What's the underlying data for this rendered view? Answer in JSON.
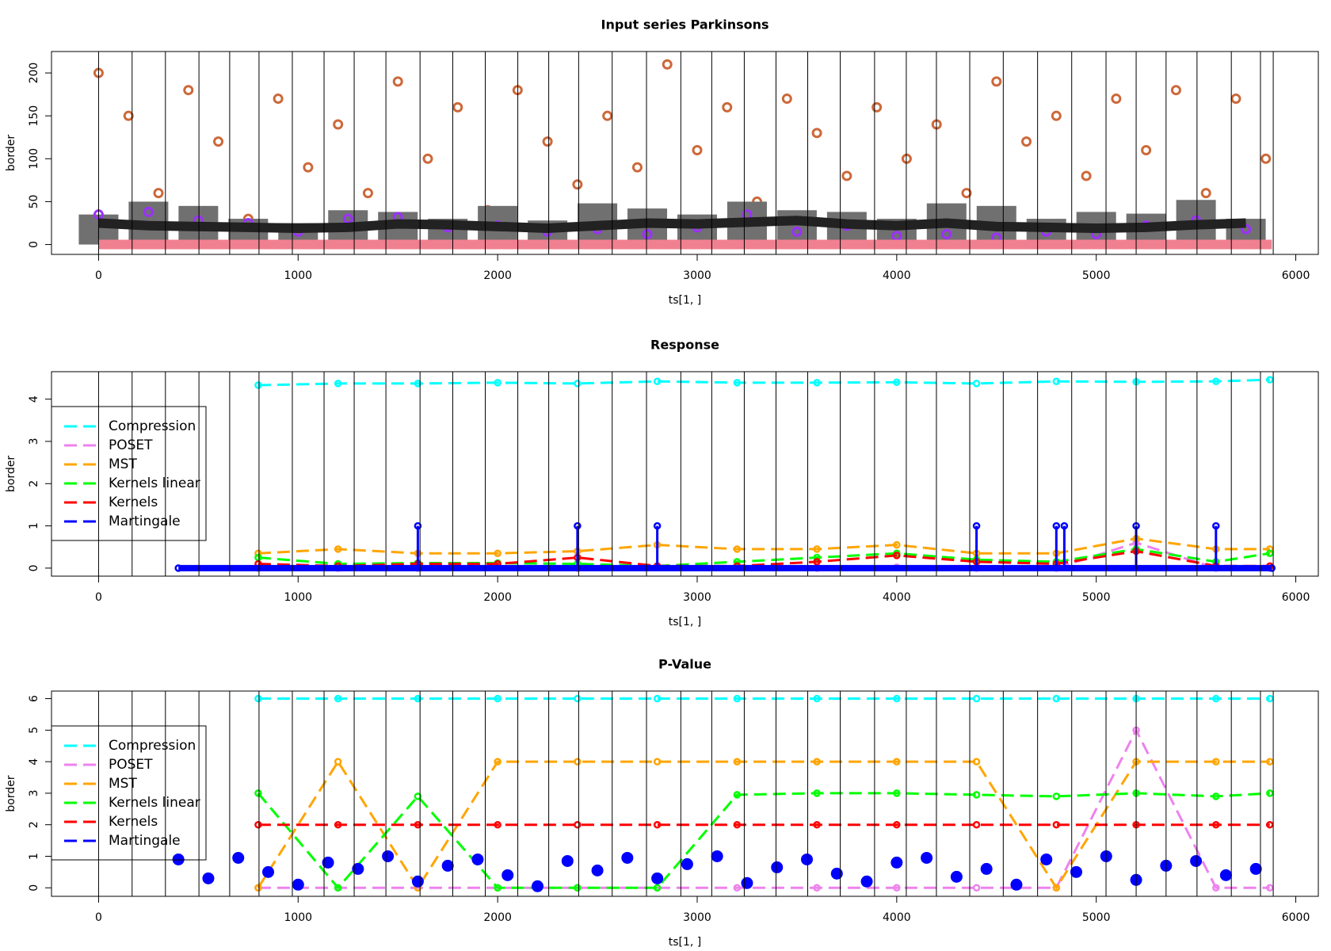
{
  "chart_data": [
    {
      "type": "scatter",
      "title": "Input series Parkinsons",
      "xlabel": "ts[1, ]",
      "ylabel": "border",
      "xlim": [
        -236,
        6113
      ],
      "ylim": [
        -11.5,
        225
      ],
      "xticks": [
        0,
        1000,
        2000,
        3000,
        4000,
        5000,
        6000
      ],
      "yticks": [
        0,
        50,
        100,
        150,
        200
      ],
      "changepoints": [
        0,
        168,
        335,
        503,
        657,
        804,
        971,
        1130,
        1281,
        1440,
        1611,
        1775,
        1938,
        2101,
        2256,
        2406,
        2574,
        2746,
        2918,
        3073,
        3236,
        3395,
        3554,
        3717,
        3889,
        4048,
        4199,
        4366,
        4534,
        4706,
        4877,
        5049,
        5200,
        5350,
        5505,
        5677,
        5823,
        5887
      ],
      "series": [
        {
          "color": "#cd6839",
          "style": "points",
          "x": [
            0,
            150,
            300,
            450,
            600,
            750,
            900,
            1050,
            1200,
            1350,
            1500,
            1650,
            1800,
            1950,
            2100,
            2250,
            2400,
            2550,
            2700,
            2850,
            3000,
            3150,
            3300,
            3450,
            3600,
            3750,
            3900,
            4050,
            4200,
            4350,
            4500,
            4650,
            4800,
            4950,
            5100,
            5250,
            5400,
            5550,
            5700,
            5850
          ],
          "values": [
            200,
            150,
            60,
            180,
            120,
            30,
            170,
            90,
            140,
            60,
            190,
            100,
            160,
            40,
            180,
            120,
            70,
            150,
            90,
            210,
            110,
            160,
            50,
            170,
            130,
            80,
            160,
            100,
            140,
            60,
            190,
            120,
            150,
            80,
            170,
            110,
            180,
            60,
            170,
            100
          ]
        },
        {
          "color": "#707070",
          "style": "blocks",
          "x": [
            0,
            250,
            500,
            750,
            1000,
            1250,
            1500,
            1750,
            2000,
            2250,
            2500,
            2750,
            3000,
            3250,
            3500,
            3750,
            4000,
            4250,
            4500,
            4750,
            5000,
            5250,
            5500,
            5750
          ],
          "values": [
            35,
            50,
            45,
            30,
            25,
            40,
            38,
            30,
            45,
            28,
            48,
            42,
            35,
            50,
            40,
            38,
            30,
            48,
            45,
            30,
            38,
            36,
            52,
            30
          ]
        },
        {
          "color": "#9b30ff",
          "style": "points",
          "x": [
            0,
            250,
            500,
            750,
            1000,
            1250,
            1500,
            1750,
            2000,
            2250,
            2500,
            2750,
            3000,
            3250,
            3500,
            3750,
            4000,
            4250,
            4500,
            4750,
            5000,
            5250,
            5500,
            5750
          ],
          "values": [
            35,
            38,
            28,
            25,
            15,
            30,
            32,
            20,
            22,
            15,
            18,
            12,
            20,
            35,
            15,
            22,
            10,
            12,
            8,
            15,
            12,
            22,
            28,
            18
          ]
        },
        {
          "color": "#222222",
          "style": "thick",
          "x": [
            0,
            250,
            500,
            750,
            1000,
            1250,
            1500,
            1750,
            2000,
            2250,
            2500,
            2750,
            3000,
            3250,
            3500,
            3750,
            4000,
            4250,
            4500,
            4750,
            5000,
            5250,
            5500,
            5750
          ],
          "values": [
            25,
            22,
            21,
            20,
            19,
            20,
            24,
            23,
            21,
            19,
            22,
            25,
            24,
            26,
            28,
            24,
            22,
            25,
            21,
            20,
            19,
            20,
            23,
            25
          ]
        },
        {
          "color": "#f08090",
          "style": "thick",
          "x": [
            0,
            5880
          ],
          "values": [
            0,
            0
          ]
        }
      ]
    },
    {
      "type": "line",
      "title": "Response",
      "xlabel": "ts[1, ]",
      "ylabel": "border",
      "legend": "topleft",
      "xlim": [
        -236,
        6113
      ],
      "ylim": [
        -0.19,
        4.65
      ],
      "xticks": [
        0,
        1000,
        2000,
        3000,
        4000,
        5000,
        6000
      ],
      "yticks": [
        0,
        1,
        2,
        3,
        4
      ],
      "changepoints": [
        0,
        168,
        335,
        503,
        657,
        804,
        971,
        1130,
        1281,
        1440,
        1611,
        1775,
        1938,
        2101,
        2256,
        2406,
        2574,
        2746,
        2918,
        3073,
        3236,
        3395,
        3554,
        3717,
        3889,
        4048,
        4199,
        4366,
        4534,
        4706,
        4877,
        5049,
        5200,
        5350,
        5505,
        5677,
        5823,
        5887
      ],
      "x": [
        800,
        1200,
        1600,
        2000,
        2400,
        2800,
        3200,
        3600,
        4000,
        4400,
        4800,
        5200,
        5600,
        5870
      ],
      "series": [
        {
          "name": "Compression",
          "color": "#00ffff",
          "values": [
            4.33,
            4.37,
            4.37,
            4.39,
            4.37,
            4.42,
            4.39,
            4.39,
            4.4,
            4.37,
            4.42,
            4.41,
            4.42,
            4.46
          ]
        },
        {
          "name": "POSET",
          "color": "#ee82ee",
          "values": [
            0,
            0,
            0,
            0.02,
            0,
            0.02,
            0.02,
            0,
            0.02,
            0,
            0,
            0.6,
            0,
            0
          ]
        },
        {
          "name": "MST",
          "color": "#ffa500",
          "values": [
            0.35,
            0.45,
            0.35,
            0.35,
            0.4,
            0.55,
            0.45,
            0.45,
            0.55,
            0.35,
            0.35,
            0.7,
            0.45,
            0.45
          ]
        },
        {
          "name": "Kernels linear",
          "color": "#00ff00",
          "values": [
            0.25,
            0.1,
            0.12,
            0.12,
            0.1,
            0.05,
            0.15,
            0.25,
            0.35,
            0.2,
            0.15,
            0.45,
            0.15,
            0.35
          ]
        },
        {
          "name": "Kernels",
          "color": "#ff0000",
          "values": [
            0.1,
            0.05,
            0.1,
            0.1,
            0.25,
            0.05,
            0.05,
            0.15,
            0.3,
            0.15,
            0.1,
            0.4,
            0.05,
            0.05
          ]
        },
        {
          "name": "Martingale",
          "color": "#0000ff",
          "style": "stem",
          "x": [
            400,
            1600,
            2400,
            2800,
            4400,
            4800,
            4840,
            5200,
            5600,
            5880
          ],
          "values": [
            0,
            1,
            1,
            1,
            1,
            1,
            1,
            1,
            1,
            0
          ]
        }
      ]
    },
    {
      "type": "line",
      "title": "P-Value",
      "xlabel": "ts[1, ]",
      "ylabel": "border",
      "legend": "topleft",
      "xlim": [
        -236,
        6113
      ],
      "ylim": [
        -0.27,
        6.24
      ],
      "xticks": [
        0,
        1000,
        2000,
        3000,
        4000,
        5000,
        6000
      ],
      "yticks": [
        0,
        1,
        2,
        3,
        4,
        5,
        6
      ],
      "changepoints": [
        0,
        168,
        335,
        503,
        657,
        804,
        971,
        1130,
        1281,
        1440,
        1611,
        1775,
        1938,
        2101,
        2256,
        2406,
        2574,
        2746,
        2918,
        3073,
        3236,
        3395,
        3554,
        3717,
        3889,
        4048,
        4199,
        4366,
        4534,
        4706,
        4877,
        5049,
        5200,
        5350,
        5505,
        5677,
        5823,
        5887
      ],
      "x": [
        800,
        1200,
        1600,
        2000,
        2400,
        2800,
        3200,
        3600,
        4000,
        4400,
        4800,
        5200,
        5600,
        5870
      ],
      "series": [
        {
          "name": "Compression",
          "color": "#00ffff",
          "values": [
            6,
            6,
            6,
            6,
            6,
            6,
            6,
            6,
            6,
            6,
            6,
            6,
            6,
            6
          ]
        },
        {
          "name": "POSET",
          "color": "#ee82ee",
          "values": [
            0,
            0,
            0,
            0,
            0,
            0,
            0,
            0,
            0,
            0,
            0,
            5,
            0,
            0
          ]
        },
        {
          "name": "MST",
          "color": "#ffa500",
          "values": [
            0,
            4,
            0,
            4,
            4,
            4,
            4,
            4,
            4,
            4,
            0,
            4,
            4,
            4
          ]
        },
        {
          "name": "Kernels linear",
          "color": "#00ff00",
          "values": [
            3,
            0,
            2.9,
            0,
            0,
            0,
            2.95,
            3,
            3,
            2.95,
            2.9,
            3,
            2.9,
            3
          ]
        },
        {
          "name": "Kernels",
          "color": "#ff0000",
          "values": [
            2,
            2,
            2,
            2,
            2,
            2,
            2,
            2,
            2,
            2,
            2,
            2,
            2,
            2
          ]
        },
        {
          "name": "Martingale",
          "color": "#0000ff",
          "style": "points",
          "x": [
            400,
            550,
            700,
            850,
            1000,
            1150,
            1300,
            1450,
            1600,
            1750,
            1900,
            2050,
            2200,
            2350,
            2500,
            2650,
            2800,
            2950,
            3100,
            3250,
            3400,
            3550,
            3700,
            3850,
            4000,
            4150,
            4300,
            4450,
            4600,
            4750,
            4900,
            5050,
            5200,
            5350,
            5500,
            5650,
            5800
          ],
          "values": [
            0.9,
            0.3,
            0.95,
            0.5,
            0.1,
            0.8,
            0.6,
            1,
            0.2,
            0.7,
            0.9,
            0.4,
            0.05,
            0.85,
            0.55,
            0.95,
            0.3,
            0.75,
            1,
            0.15,
            0.65,
            0.9,
            0.45,
            0.2,
            0.8,
            0.95,
            0.35,
            0.6,
            0.1,
            0.9,
            0.5,
            1,
            0.25,
            0.7,
            0.85,
            0.4,
            0.6
          ]
        }
      ]
    }
  ]
}
